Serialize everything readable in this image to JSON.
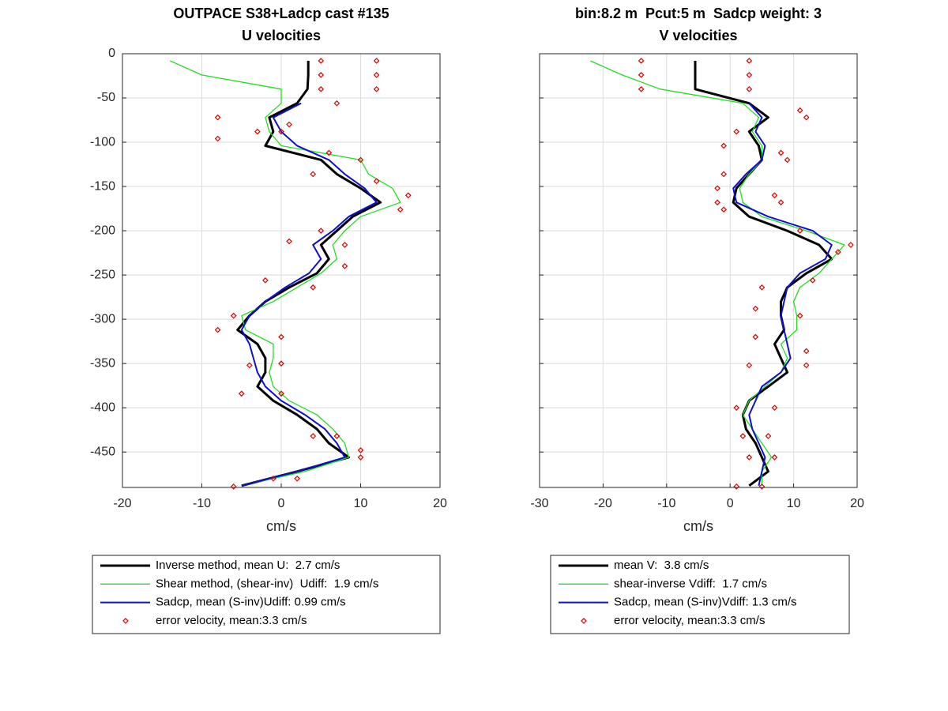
{
  "chart_data": [
    {
      "type": "line",
      "title": [
        "OUTPACE S38+Ladcp cast #135",
        "U velocities"
      ],
      "xlabel": "cm/s",
      "xlim": [
        -20,
        20
      ],
      "xticks": [
        -20,
        -10,
        0,
        10,
        20
      ],
      "ylim": [
        -490,
        0
      ],
      "yticks": [
        0,
        -50,
        -100,
        -150,
        -200,
        -250,
        -300,
        -350,
        -400,
        -450
      ],
      "yticklabels": true,
      "grid": true,
      "series": [
        {
          "name": "Inverse method, mean U:  2.7 cm/s",
          "color": "#000000",
          "linewidth": 3,
          "x": [
            3.4,
            3.4,
            3.3,
            2,
            -1.5,
            -1,
            -2,
            5,
            7,
            10,
            12.5,
            9,
            7,
            5,
            6,
            4.5,
            1,
            -2,
            -4,
            -5.5,
            -3,
            -2,
            -2,
            -3,
            -1,
            2,
            4.5,
            6,
            8.5,
            2,
            -5
          ],
          "y": [
            -8,
            -24,
            -40,
            -56,
            -72,
            -88,
            -104,
            -120,
            -136,
            -152,
            -168,
            -184,
            -200,
            -216,
            -232,
            -248,
            -264,
            -280,
            -296,
            -312,
            -328,
            -344,
            -360,
            -376,
            -392,
            -408,
            -424,
            -440,
            -456,
            -472,
            -488
          ]
        },
        {
          "name": "Shear method, (shear-inv)  Udiff:  1.9 cm/s",
          "color": "#22dd22",
          "linewidth": 1.3,
          "x": [
            -14,
            -10,
            0,
            0,
            -2,
            -1.5,
            0,
            10,
            11,
            14,
            15,
            10,
            8,
            6.5,
            7,
            5,
            2,
            -1,
            -5,
            -4.5,
            -1,
            -1,
            -1.5,
            -1,
            1,
            4.5,
            6.5,
            8,
            8.5,
            3,
            -5
          ],
          "y": [
            -8,
            -24,
            -40,
            -56,
            -72,
            -88,
            -104,
            -120,
            -136,
            -152,
            -168,
            -184,
            -200,
            -216,
            -232,
            -248,
            -264,
            -280,
            -296,
            -312,
            -328,
            -344,
            -360,
            -376,
            -392,
            -408,
            -424,
            -440,
            -456,
            -472,
            -488
          ]
        },
        {
          "name": "Sadcp, mean (S-inv)Udiff: 0.99 cm/s",
          "color": "#1010cc",
          "linewidth": 2,
          "x": [
            2.5,
            -1,
            0,
            2,
            6,
            8,
            10.5,
            12,
            8.5,
            6.5,
            4,
            5,
            3.5,
            0.5,
            -2,
            -4,
            -5,
            -4,
            -3.5,
            -3,
            -2,
            0,
            3,
            5.5,
            7,
            8,
            2,
            -5
          ],
          "y": [
            -56,
            -72,
            -88,
            -104,
            -120,
            -136,
            -152,
            -168,
            -184,
            -200,
            -216,
            -232,
            -248,
            -264,
            -280,
            -296,
            -312,
            -328,
            -344,
            -360,
            -376,
            -392,
            -408,
            -424,
            -440,
            -456,
            -472,
            -488
          ]
        },
        {
          "name": "error velocity, mean:3.3 cm/s",
          "color": "#dd0000",
          "marker": "diamond",
          "x": [
            5,
            5,
            5,
            12,
            12,
            12,
            7,
            -8,
            -3,
            -8,
            0,
            1,
            6,
            10,
            4,
            12,
            16,
            15,
            5,
            8,
            1,
            8,
            -2,
            4,
            -6,
            -8,
            0,
            -4,
            0,
            -5,
            0,
            4,
            7,
            10,
            10,
            -1,
            2,
            -6
          ],
          "y": [
            -8,
            -24,
            -40,
            -8,
            -24,
            -40,
            -56,
            -72,
            -88,
            -96,
            -88,
            -80,
            -112,
            -120,
            -136,
            -144,
            -160,
            -176,
            -200,
            -216,
            -212,
            -240,
            -256,
            -264,
            -296,
            -312,
            -320,
            -352,
            -350,
            -384,
            -384,
            -432,
            -432,
            -448,
            -456,
            -480,
            -480,
            -489
          ]
        }
      ]
    },
    {
      "type": "line",
      "title": [
        "bin:8.2 m  Pcut:5 m  Sadcp weight: 3",
        "V velocities"
      ],
      "xlabel": "cm/s",
      "xlim": [
        -30,
        20
      ],
      "xticks": [
        -30,
        -20,
        -10,
        0,
        10,
        20
      ],
      "ylim": [
        -490,
        0
      ],
      "yticks": [
        0,
        -50,
        -100,
        -150,
        -200,
        -250,
        -300,
        -350,
        -400,
        -450
      ],
      "yticklabels": false,
      "grid": true,
      "series": [
        {
          "name": "mean V:  3.8 cm/s",
          "color": "#000000",
          "linewidth": 3,
          "x": [
            -5.5,
            -5.5,
            -5.5,
            3,
            6,
            3,
            4.5,
            5,
            3,
            1,
            0.5,
            3,
            9,
            14,
            16,
            12,
            9,
            8,
            8,
            8.5,
            7,
            8,
            9,
            6,
            3,
            2,
            2.5,
            4,
            5,
            6,
            3
          ],
          "y": [
            -8,
            -24,
            -40,
            -56,
            -72,
            -88,
            -104,
            -120,
            -136,
            -152,
            -168,
            -184,
            -200,
            -216,
            -232,
            -248,
            -264,
            -280,
            -296,
            -312,
            -328,
            -344,
            -360,
            -376,
            -392,
            -408,
            -424,
            -440,
            -456,
            -472,
            -488
          ]
        },
        {
          "name": "shear-inverse Vdiff:  1.7 cm/s",
          "color": "#22dd22",
          "linewidth": 1.3,
          "x": [
            -22,
            -17,
            -11,
            2,
            4.5,
            3.5,
            5,
            5,
            3,
            1.5,
            2,
            5,
            12,
            18,
            16,
            14,
            11,
            10,
            10.5,
            10.5,
            8,
            9,
            8,
            5.5,
            3,
            2,
            3.5,
            5,
            6.5,
            5,
            5
          ],
          "y": [
            -8,
            -24,
            -40,
            -56,
            -72,
            -88,
            -104,
            -120,
            -136,
            -152,
            -168,
            -184,
            -200,
            -216,
            -232,
            -248,
            -264,
            -280,
            -296,
            -312,
            -328,
            -344,
            -360,
            -376,
            -392,
            -408,
            -424,
            -440,
            -456,
            -472,
            -488
          ]
        },
        {
          "name": "Sadcp, mean (S-inv)Vdiff: 1.3 cm/s",
          "color": "#1010cc",
          "linewidth": 2,
          "x": [
            3,
            5,
            4,
            5.5,
            5,
            2.5,
            0.5,
            1,
            6,
            13,
            16,
            15,
            11,
            9,
            8.5,
            8,
            8.5,
            9,
            9.5,
            8,
            5,
            4,
            3,
            3.5,
            4.5,
            5.5,
            5,
            4.5
          ],
          "y": [
            -56,
            -72,
            -88,
            -104,
            -120,
            -136,
            -152,
            -168,
            -184,
            -200,
            -216,
            -232,
            -248,
            -264,
            -280,
            -296,
            -312,
            -328,
            -344,
            -360,
            -376,
            -392,
            -408,
            -424,
            -440,
            -456,
            -472,
            -488
          ]
        },
        {
          "name": "error velocity, mean:3.3 cm/s",
          "color": "#dd0000",
          "marker": "diamond",
          "x": [
            -14,
            -14,
            -14,
            3,
            3,
            3,
            11,
            12,
            1,
            -1,
            8,
            9,
            -1,
            -2,
            -2,
            -1,
            7,
            8,
            11,
            19,
            17,
            5,
            13,
            4,
            11,
            4,
            12,
            3,
            12,
            1,
            7,
            2,
            6,
            3,
            7,
            1,
            5
          ],
          "y": [
            -8,
            -24,
            -40,
            -8,
            -24,
            -40,
            -64,
            -72,
            -88,
            -104,
            -112,
            -120,
            -136,
            -152,
            -168,
            -176,
            -160,
            -168,
            -200,
            -216,
            -224,
            -264,
            -256,
            -288,
            -296,
            -320,
            -336,
            -352,
            -352,
            -400,
            -400,
            -432,
            -432,
            -456,
            -456,
            -489,
            -489
          ]
        }
      ]
    }
  ]
}
